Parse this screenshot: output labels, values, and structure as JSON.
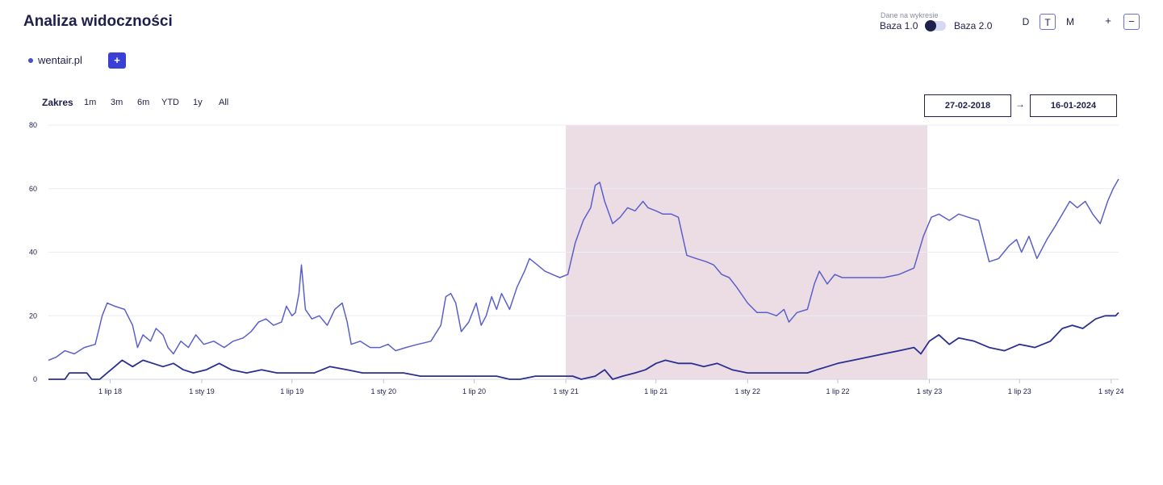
{
  "header": {
    "title": "Analiza widoczności",
    "data_on_chart_label": "Dane na wykresie",
    "baza1_label": "Baza 1.0",
    "baza2_label": "Baza 2.0",
    "periods": [
      "D",
      "T",
      "M"
    ],
    "active_period": "T",
    "zoom_in_label": "+",
    "zoom_out_label": "−"
  },
  "legend": {
    "domain": "wentair.pl",
    "add_label": "+"
  },
  "range": {
    "label": "Zakres",
    "options": [
      "1m",
      "3m",
      "6m",
      "YTD",
      "1y",
      "All"
    ],
    "from": "27-02-2018",
    "to": "16-01-2024",
    "arrow": "→"
  },
  "colors": {
    "line_upper": "#5b60c9",
    "line_lower": "#2b2f8f",
    "highlight": "#ecdde5",
    "gridline": "#ececf3",
    "accent": "#3a3fd6"
  },
  "chart_data": {
    "type": "line",
    "x_start": "2018-02-27",
    "x_end": "2024-01-16",
    "ylim": [
      0,
      80
    ],
    "yticks": [
      0,
      20,
      40,
      60,
      80
    ],
    "xtick_labels": [
      {
        "date": "2018-07-01",
        "label": "1 lip 18"
      },
      {
        "date": "2019-01-01",
        "label": "1 sty 19"
      },
      {
        "date": "2019-07-01",
        "label": "1 lip 19"
      },
      {
        "date": "2020-01-01",
        "label": "1 sty 20"
      },
      {
        "date": "2020-07-01",
        "label": "1 lip 20"
      },
      {
        "date": "2021-01-01",
        "label": "1 sty 21"
      },
      {
        "date": "2021-07-01",
        "label": "1 lip 21"
      },
      {
        "date": "2022-01-01",
        "label": "1 sty 22"
      },
      {
        "date": "2022-07-01",
        "label": "1 lip 22"
      },
      {
        "date": "2023-01-01",
        "label": "1 sty 23"
      },
      {
        "date": "2023-07-01",
        "label": "1 lip 23"
      },
      {
        "date": "2024-01-01",
        "label": "1 sty 24"
      }
    ],
    "highlight_band": {
      "from": "2021-01-01",
      "to": "2022-12-28"
    },
    "grid": true,
    "series": [
      {
        "values": [
          [
            "2018-02-27",
            6
          ],
          [
            "2018-03-15",
            7
          ],
          [
            "2018-04-01",
            9
          ],
          [
            "2018-04-20",
            8
          ],
          [
            "2018-05-10",
            10
          ],
          [
            "2018-06-01",
            11
          ],
          [
            "2018-06-15",
            20
          ],
          [
            "2018-06-25",
            24
          ],
          [
            "2018-07-10",
            23
          ],
          [
            "2018-07-30",
            22
          ],
          [
            "2018-08-15",
            17
          ],
          [
            "2018-08-25",
            10
          ],
          [
            "2018-09-05",
            14
          ],
          [
            "2018-09-20",
            12
          ],
          [
            "2018-10-01",
            16
          ],
          [
            "2018-10-15",
            14
          ],
          [
            "2018-10-25",
            10
          ],
          [
            "2018-11-05",
            8
          ],
          [
            "2018-11-20",
            12
          ],
          [
            "2018-12-05",
            10
          ],
          [
            "2018-12-20",
            14
          ],
          [
            "2019-01-05",
            11
          ],
          [
            "2019-01-25",
            12
          ],
          [
            "2019-02-15",
            10
          ],
          [
            "2019-03-05",
            12
          ],
          [
            "2019-03-25",
            13
          ],
          [
            "2019-04-10",
            15
          ],
          [
            "2019-04-25",
            18
          ],
          [
            "2019-05-10",
            19
          ],
          [
            "2019-05-25",
            17
          ],
          [
            "2019-06-10",
            18
          ],
          [
            "2019-06-20",
            23
          ],
          [
            "2019-07-01",
            20
          ],
          [
            "2019-07-08",
            21
          ],
          [
            "2019-07-15",
            27
          ],
          [
            "2019-07-20",
            36
          ],
          [
            "2019-07-28",
            22
          ],
          [
            "2019-08-10",
            19
          ],
          [
            "2019-08-25",
            20
          ],
          [
            "2019-09-10",
            17
          ],
          [
            "2019-09-25",
            22
          ],
          [
            "2019-10-10",
            24
          ],
          [
            "2019-10-20",
            18
          ],
          [
            "2019-10-28",
            11
          ],
          [
            "2019-11-15",
            12
          ],
          [
            "2019-12-05",
            10
          ],
          [
            "2019-12-25",
            10
          ],
          [
            "2020-01-10",
            11
          ],
          [
            "2020-01-25",
            9
          ],
          [
            "2020-02-15",
            10
          ],
          [
            "2020-03-10",
            11
          ],
          [
            "2020-04-05",
            12
          ],
          [
            "2020-04-25",
            17
          ],
          [
            "2020-05-05",
            26
          ],
          [
            "2020-05-15",
            27
          ],
          [
            "2020-05-25",
            24
          ],
          [
            "2020-06-05",
            15
          ],
          [
            "2020-06-20",
            18
          ],
          [
            "2020-07-05",
            24
          ],
          [
            "2020-07-15",
            17
          ],
          [
            "2020-07-25",
            20
          ],
          [
            "2020-08-05",
            26
          ],
          [
            "2020-08-15",
            22
          ],
          [
            "2020-08-25",
            27
          ],
          [
            "2020-09-10",
            22
          ],
          [
            "2020-09-25",
            29
          ],
          [
            "2020-10-10",
            34
          ],
          [
            "2020-10-20",
            38
          ],
          [
            "2020-11-05",
            36
          ],
          [
            "2020-11-20",
            34
          ],
          [
            "2020-12-05",
            33
          ],
          [
            "2020-12-20",
            32
          ],
          [
            "2021-01-05",
            33
          ],
          [
            "2021-01-20",
            43
          ],
          [
            "2021-02-05",
            50
          ],
          [
            "2021-02-20",
            54
          ],
          [
            "2021-03-01",
            61
          ],
          [
            "2021-03-10",
            62
          ],
          [
            "2021-03-20",
            56
          ],
          [
            "2021-04-05",
            49
          ],
          [
            "2021-04-20",
            51
          ],
          [
            "2021-05-05",
            54
          ],
          [
            "2021-05-20",
            53
          ],
          [
            "2021-06-05",
            56
          ],
          [
            "2021-06-15",
            54
          ],
          [
            "2021-07-01",
            53
          ],
          [
            "2021-07-15",
            52
          ],
          [
            "2021-08-01",
            52
          ],
          [
            "2021-08-15",
            51
          ],
          [
            "2021-09-01",
            39
          ],
          [
            "2021-09-20",
            38
          ],
          [
            "2021-10-10",
            37
          ],
          [
            "2021-10-25",
            36
          ],
          [
            "2021-11-10",
            33
          ],
          [
            "2021-11-25",
            32
          ],
          [
            "2021-12-10",
            29
          ],
          [
            "2022-01-01",
            24
          ],
          [
            "2022-01-20",
            21
          ],
          [
            "2022-02-10",
            21
          ],
          [
            "2022-02-28",
            20
          ],
          [
            "2022-03-15",
            22
          ],
          [
            "2022-03-25",
            18
          ],
          [
            "2022-04-10",
            21
          ],
          [
            "2022-05-01",
            22
          ],
          [
            "2022-05-15",
            30
          ],
          [
            "2022-05-25",
            34
          ],
          [
            "2022-06-10",
            30
          ],
          [
            "2022-06-25",
            33
          ],
          [
            "2022-07-10",
            32
          ],
          [
            "2022-08-01",
            32
          ],
          [
            "2022-09-01",
            32
          ],
          [
            "2022-10-01",
            32
          ],
          [
            "2022-11-01",
            33
          ],
          [
            "2022-12-01",
            35
          ],
          [
            "2022-12-20",
            45
          ],
          [
            "2023-01-05",
            51
          ],
          [
            "2023-01-20",
            52
          ],
          [
            "2023-02-10",
            50
          ],
          [
            "2023-03-01",
            52
          ],
          [
            "2023-03-20",
            51
          ],
          [
            "2023-04-10",
            50
          ],
          [
            "2023-05-01",
            37
          ],
          [
            "2023-05-20",
            38
          ],
          [
            "2023-06-10",
            42
          ],
          [
            "2023-06-25",
            44
          ],
          [
            "2023-07-05",
            40
          ],
          [
            "2023-07-20",
            45
          ],
          [
            "2023-08-05",
            38
          ],
          [
            "2023-08-25",
            44
          ],
          [
            "2023-09-10",
            48
          ],
          [
            "2023-09-25",
            52
          ],
          [
            "2023-10-10",
            56
          ],
          [
            "2023-10-25",
            54
          ],
          [
            "2023-11-10",
            56
          ],
          [
            "2023-11-25",
            52
          ],
          [
            "2023-12-10",
            49
          ],
          [
            "2023-12-25",
            56
          ],
          [
            "2024-01-05",
            60
          ],
          [
            "2024-01-16",
            63
          ]
        ]
      },
      {
        "values": [
          [
            "2018-02-27",
            0
          ],
          [
            "2018-04-01",
            0
          ],
          [
            "2018-04-10",
            2
          ],
          [
            "2018-05-15",
            2
          ],
          [
            "2018-05-25",
            0
          ],
          [
            "2018-06-10",
            0
          ],
          [
            "2018-06-25",
            2
          ],
          [
            "2018-07-10",
            4
          ],
          [
            "2018-07-25",
            6
          ],
          [
            "2018-08-15",
            4
          ],
          [
            "2018-09-05",
            6
          ],
          [
            "2018-09-25",
            5
          ],
          [
            "2018-10-15",
            4
          ],
          [
            "2018-11-05",
            5
          ],
          [
            "2018-11-25",
            3
          ],
          [
            "2018-12-15",
            2
          ],
          [
            "2019-01-10",
            3
          ],
          [
            "2019-02-05",
            5
          ],
          [
            "2019-03-01",
            3
          ],
          [
            "2019-04-01",
            2
          ],
          [
            "2019-05-01",
            3
          ],
          [
            "2019-06-01",
            2
          ],
          [
            "2019-07-01",
            2
          ],
          [
            "2019-08-15",
            2
          ],
          [
            "2019-09-15",
            4
          ],
          [
            "2019-10-20",
            3
          ],
          [
            "2019-11-20",
            2
          ],
          [
            "2020-01-01",
            2
          ],
          [
            "2020-02-10",
            2
          ],
          [
            "2020-03-15",
            1
          ],
          [
            "2020-04-15",
            1
          ],
          [
            "2020-05-15",
            1
          ],
          [
            "2020-07-01",
            1
          ],
          [
            "2020-08-15",
            1
          ],
          [
            "2020-09-10",
            0
          ],
          [
            "2020-10-01",
            0
          ],
          [
            "2020-11-01",
            1
          ],
          [
            "2020-12-01",
            1
          ],
          [
            "2021-01-15",
            1
          ],
          [
            "2021-02-01",
            0
          ],
          [
            "2021-03-01",
            1
          ],
          [
            "2021-03-20",
            3
          ],
          [
            "2021-04-05",
            0
          ],
          [
            "2021-04-25",
            1
          ],
          [
            "2021-05-20",
            2
          ],
          [
            "2021-06-10",
            3
          ],
          [
            "2021-07-01",
            5
          ],
          [
            "2021-07-20",
            6
          ],
          [
            "2021-08-15",
            5
          ],
          [
            "2021-09-10",
            5
          ],
          [
            "2021-10-05",
            4
          ],
          [
            "2021-11-01",
            5
          ],
          [
            "2021-12-01",
            3
          ],
          [
            "2022-01-01",
            2
          ],
          [
            "2022-02-01",
            2
          ],
          [
            "2022-03-01",
            2
          ],
          [
            "2022-04-01",
            2
          ],
          [
            "2022-05-01",
            2
          ],
          [
            "2022-05-20",
            3
          ],
          [
            "2022-06-10",
            4
          ],
          [
            "2022-07-01",
            5
          ],
          [
            "2022-08-01",
            6
          ],
          [
            "2022-09-01",
            7
          ],
          [
            "2022-10-01",
            8
          ],
          [
            "2022-11-01",
            9
          ],
          [
            "2022-12-01",
            10
          ],
          [
            "2022-12-15",
            8
          ],
          [
            "2023-01-01",
            12
          ],
          [
            "2023-01-20",
            14
          ],
          [
            "2023-02-10",
            11
          ],
          [
            "2023-03-01",
            13
          ],
          [
            "2023-04-01",
            12
          ],
          [
            "2023-05-01",
            10
          ],
          [
            "2023-06-01",
            9
          ],
          [
            "2023-07-01",
            11
          ],
          [
            "2023-08-01",
            10
          ],
          [
            "2023-09-01",
            12
          ],
          [
            "2023-09-25",
            16
          ],
          [
            "2023-10-15",
            17
          ],
          [
            "2023-11-05",
            16
          ],
          [
            "2023-12-01",
            19
          ],
          [
            "2023-12-20",
            20
          ],
          [
            "2024-01-10",
            20
          ],
          [
            "2024-01-16",
            21
          ]
        ]
      }
    ]
  }
}
